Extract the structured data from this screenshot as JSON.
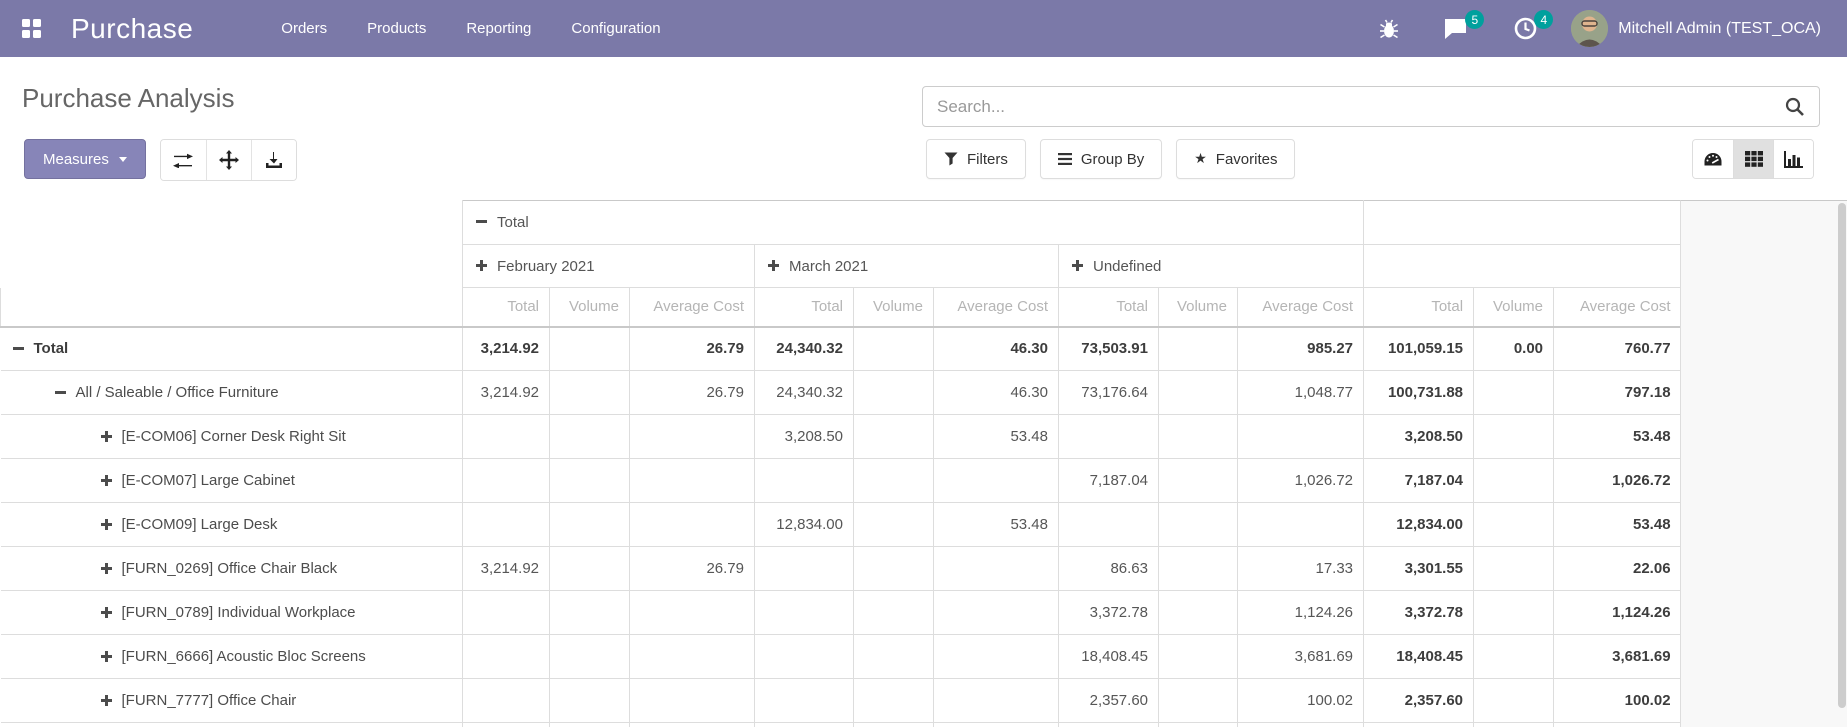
{
  "navbar": {
    "brand": "Purchase",
    "menus": [
      "Orders",
      "Products",
      "Reporting",
      "Configuration"
    ],
    "messages_badge": "5",
    "activities_badge": "4",
    "user_name": "Mitchell Admin (TEST_OCA)",
    "icons": [
      "apps-grid-icon",
      "bug-icon",
      "messages-icon",
      "activities-icon",
      "user-avatar"
    ]
  },
  "colors": {
    "navbar_bg": "#7b79a8",
    "badge_teal": "#00a09d",
    "measures_button": "#8785b8",
    "active_view_bg": "#e0e0e0",
    "grid_border": "#dddddd",
    "measure_header_text": "#b5b5b5"
  },
  "control_panel": {
    "title": "Purchase Analysis",
    "measures_label": "Measures",
    "toolbar_icons": [
      "flip-axis-icon",
      "expand-all-icon",
      "download-icon"
    ],
    "search_placeholder": "Search...",
    "search_value": "",
    "filters_label": "Filters",
    "group_by_label": "Group By",
    "favorites_label": "Favorites",
    "star_glyph": "★",
    "view_switcher": [
      "dashboard-view",
      "pivot-view (active)",
      "graph-view"
    ]
  },
  "pivot": {
    "col_root": {
      "label": "Total",
      "state": "expanded"
    },
    "col_groups": [
      {
        "label": "February 2021",
        "state": "collapsed"
      },
      {
        "label": "March 2021",
        "state": "collapsed"
      },
      {
        "label": "Undefined",
        "state": "collapsed"
      }
    ],
    "measures": [
      "Total",
      "Volume",
      "Average Cost"
    ],
    "rows": [
      {
        "label": "Total",
        "depth": 0,
        "state": "expanded",
        "bold": true,
        "cells": [
          "3,214.92",
          "",
          "26.79",
          "24,340.32",
          "",
          "46.30",
          "73,503.91",
          "",
          "985.27",
          "101,059.15",
          "0.00",
          "760.77"
        ]
      },
      {
        "label": "All / Saleable / Office Furniture",
        "depth": 1,
        "state": "expanded",
        "bold": false,
        "cells": [
          "3,214.92",
          "",
          "26.79",
          "24,340.32",
          "",
          "46.30",
          "73,176.64",
          "",
          "1,048.77",
          "100,731.88",
          "",
          "797.18"
        ]
      },
      {
        "label": "[E-COM06] Corner Desk Right Sit",
        "depth": 2,
        "state": "collapsed",
        "bold": false,
        "cells": [
          "",
          "",
          "",
          "3,208.50",
          "",
          "53.48",
          "",
          "",
          "",
          "3,208.50",
          "",
          "53.48"
        ]
      },
      {
        "label": "[E-COM07] Large Cabinet",
        "depth": 2,
        "state": "collapsed",
        "bold": false,
        "cells": [
          "",
          "",
          "",
          "",
          "",
          "",
          "7,187.04",
          "",
          "1,026.72",
          "7,187.04",
          "",
          "1,026.72"
        ]
      },
      {
        "label": "[E-COM09] Large Desk",
        "depth": 2,
        "state": "collapsed",
        "bold": false,
        "cells": [
          "",
          "",
          "",
          "12,834.00",
          "",
          "53.48",
          "",
          "",
          "",
          "12,834.00",
          "",
          "53.48"
        ]
      },
      {
        "label": "[FURN_0269] Office Chair Black",
        "depth": 2,
        "state": "collapsed",
        "bold": false,
        "cells": [
          "3,214.92",
          "",
          "26.79",
          "",
          "",
          "",
          "86.63",
          "",
          "17.33",
          "3,301.55",
          "",
          "22.06"
        ]
      },
      {
        "label": "[FURN_0789] Individual Workplace",
        "depth": 2,
        "state": "collapsed",
        "bold": false,
        "cells": [
          "",
          "",
          "",
          "",
          "",
          "",
          "3,372.78",
          "",
          "1,124.26",
          "3,372.78",
          "",
          "1,124.26"
        ]
      },
      {
        "label": "[FURN_6666] Acoustic Bloc Screens",
        "depth": 2,
        "state": "collapsed",
        "bold": false,
        "cells": [
          "",
          "",
          "",
          "",
          "",
          "",
          "18,408.45",
          "",
          "3,681.69",
          "18,408.45",
          "",
          "3,681.69"
        ]
      },
      {
        "label": "[FURN_7777] Office Chair",
        "depth": 2,
        "state": "collapsed",
        "bold": false,
        "cells": [
          "",
          "",
          "",
          "",
          "",
          "",
          "2,357.60",
          "",
          "100.02",
          "2,357.60",
          "",
          "100.02"
        ]
      }
    ]
  }
}
